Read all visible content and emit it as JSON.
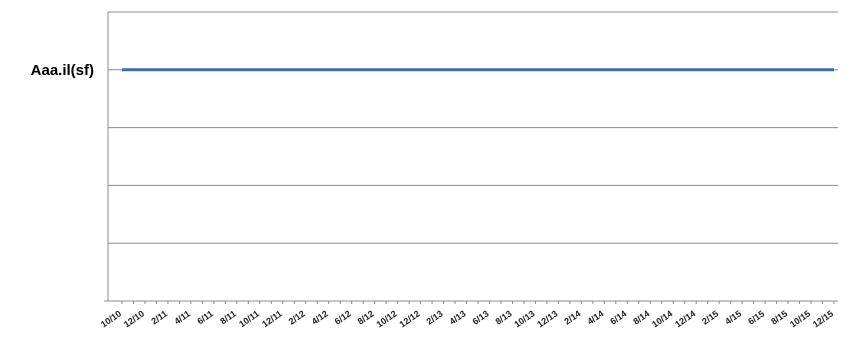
{
  "chart_data": {
    "type": "line",
    "ylabel": "Aaa.il(sf)",
    "x_tick_labels": [
      "10/10",
      "12/10",
      "2/11",
      "4/11",
      "6/11",
      "8/11",
      "10/11",
      "12/11",
      "2/12",
      "4/12",
      "6/12",
      "8/12",
      "10/12",
      "12/12",
      "2/13",
      "4/13",
      "6/13",
      "8/13",
      "10/13",
      "12/13",
      "2/14",
      "4/14",
      "6/14",
      "8/14",
      "10/14",
      "12/14",
      "2/15",
      "4/15",
      "6/15",
      "8/15",
      "10/15",
      "12/15"
    ],
    "x_range": [
      "10/10",
      "12/15"
    ],
    "series": [
      {
        "color": "#3a6db0",
        "x": [
          "10/10",
          "12/15"
        ],
        "y": [
          "Aaa.il(sf)",
          "Aaa.il(sf)"
        ]
      }
    ],
    "y_levels": 5,
    "series_level": 1,
    "grid": true,
    "legend": "none"
  }
}
